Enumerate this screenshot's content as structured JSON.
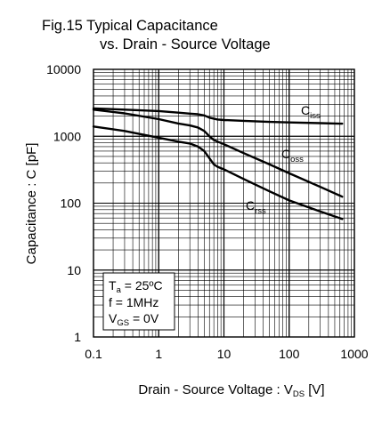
{
  "title_line1": "Fig.15 Typical Capacitance",
  "title_line2": "vs. Drain - Source Voltage",
  "chart_data": {
    "type": "line",
    "x_scale": "log",
    "y_scale": "log",
    "xlim": [
      0.1,
      1000
    ],
    "ylim": [
      1,
      10000
    ],
    "grid": true,
    "x_ticks": [
      "0.1",
      "1",
      "10",
      "100",
      "1000"
    ],
    "y_ticks": [
      "1",
      "10",
      "100",
      "1000",
      "10000"
    ],
    "xlabel": {
      "main": "Drain - Source Voltage : V",
      "sub": "DS",
      "unit": " [V]"
    },
    "ylabel": "Capacitance : C [pF]",
    "series": [
      {
        "name": {
          "main": "C",
          "sub": "iss"
        },
        "color": "#000000",
        "x": [
          0.1,
          0.3,
          1,
          2,
          3,
          4,
          5,
          6,
          8,
          10,
          20,
          50,
          100,
          300,
          650
        ],
        "y": [
          2600,
          2500,
          2380,
          2250,
          2180,
          2130,
          2050,
          1900,
          1780,
          1750,
          1700,
          1640,
          1610,
          1570,
          1540
        ]
      },
      {
        "name": {
          "main": "C",
          "sub": "oss"
        },
        "color": "#000000",
        "x": [
          0.1,
          0.3,
          1,
          2,
          3,
          4,
          5,
          6,
          7,
          8,
          10,
          20,
          50,
          100,
          300,
          650
        ],
        "y": [
          2500,
          2200,
          1800,
          1550,
          1450,
          1350,
          1200,
          1000,
          880,
          830,
          760,
          560,
          380,
          280,
          175,
          125
        ]
      },
      {
        "name": {
          "main": "C",
          "sub": "rss"
        },
        "color": "#000000",
        "x": [
          0.1,
          0.3,
          1,
          2,
          3,
          4,
          5,
          6,
          7,
          8,
          10,
          20,
          50,
          100,
          300,
          650
        ],
        "y": [
          1400,
          1200,
          950,
          830,
          780,
          700,
          600,
          470,
          380,
          350,
          320,
          230,
          150,
          110,
          75,
          58
        ]
      }
    ],
    "conditions": [
      {
        "main": "T",
        "sub": "a",
        "rest": " = 25ºC"
      },
      {
        "main": "f = 1MHz",
        "sub": "",
        "rest": ""
      },
      {
        "main": "V",
        "sub": "GS",
        "rest": " = 0V"
      }
    ]
  }
}
